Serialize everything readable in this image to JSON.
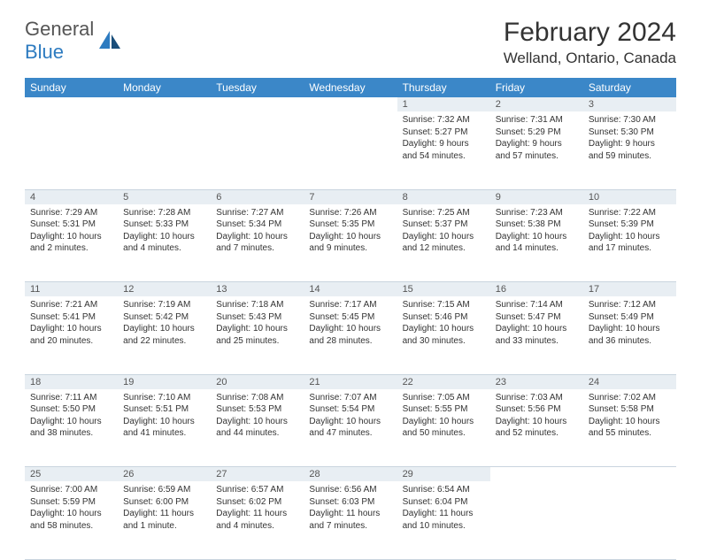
{
  "logo": {
    "general": "General",
    "blue": "Blue"
  },
  "title": "February 2024",
  "location": "Welland, Ontario, Canada",
  "header_color": "#3b87c8",
  "daynum_bg": "#e8eef3",
  "days_of_week": [
    "Sunday",
    "Monday",
    "Tuesday",
    "Wednesday",
    "Thursday",
    "Friday",
    "Saturday"
  ],
  "weeks": [
    [
      null,
      null,
      null,
      null,
      {
        "n": "1",
        "sr": "Sunrise: 7:32 AM",
        "ss": "Sunset: 5:27 PM",
        "dl": "Daylight: 9 hours and 54 minutes."
      },
      {
        "n": "2",
        "sr": "Sunrise: 7:31 AM",
        "ss": "Sunset: 5:29 PM",
        "dl": "Daylight: 9 hours and 57 minutes."
      },
      {
        "n": "3",
        "sr": "Sunrise: 7:30 AM",
        "ss": "Sunset: 5:30 PM",
        "dl": "Daylight: 9 hours and 59 minutes."
      }
    ],
    [
      {
        "n": "4",
        "sr": "Sunrise: 7:29 AM",
        "ss": "Sunset: 5:31 PM",
        "dl": "Daylight: 10 hours and 2 minutes."
      },
      {
        "n": "5",
        "sr": "Sunrise: 7:28 AM",
        "ss": "Sunset: 5:33 PM",
        "dl": "Daylight: 10 hours and 4 minutes."
      },
      {
        "n": "6",
        "sr": "Sunrise: 7:27 AM",
        "ss": "Sunset: 5:34 PM",
        "dl": "Daylight: 10 hours and 7 minutes."
      },
      {
        "n": "7",
        "sr": "Sunrise: 7:26 AM",
        "ss": "Sunset: 5:35 PM",
        "dl": "Daylight: 10 hours and 9 minutes."
      },
      {
        "n": "8",
        "sr": "Sunrise: 7:25 AM",
        "ss": "Sunset: 5:37 PM",
        "dl": "Daylight: 10 hours and 12 minutes."
      },
      {
        "n": "9",
        "sr": "Sunrise: 7:23 AM",
        "ss": "Sunset: 5:38 PM",
        "dl": "Daylight: 10 hours and 14 minutes."
      },
      {
        "n": "10",
        "sr": "Sunrise: 7:22 AM",
        "ss": "Sunset: 5:39 PM",
        "dl": "Daylight: 10 hours and 17 minutes."
      }
    ],
    [
      {
        "n": "11",
        "sr": "Sunrise: 7:21 AM",
        "ss": "Sunset: 5:41 PM",
        "dl": "Daylight: 10 hours and 20 minutes."
      },
      {
        "n": "12",
        "sr": "Sunrise: 7:19 AM",
        "ss": "Sunset: 5:42 PM",
        "dl": "Daylight: 10 hours and 22 minutes."
      },
      {
        "n": "13",
        "sr": "Sunrise: 7:18 AM",
        "ss": "Sunset: 5:43 PM",
        "dl": "Daylight: 10 hours and 25 minutes."
      },
      {
        "n": "14",
        "sr": "Sunrise: 7:17 AM",
        "ss": "Sunset: 5:45 PM",
        "dl": "Daylight: 10 hours and 28 minutes."
      },
      {
        "n": "15",
        "sr": "Sunrise: 7:15 AM",
        "ss": "Sunset: 5:46 PM",
        "dl": "Daylight: 10 hours and 30 minutes."
      },
      {
        "n": "16",
        "sr": "Sunrise: 7:14 AM",
        "ss": "Sunset: 5:47 PM",
        "dl": "Daylight: 10 hours and 33 minutes."
      },
      {
        "n": "17",
        "sr": "Sunrise: 7:12 AM",
        "ss": "Sunset: 5:49 PM",
        "dl": "Daylight: 10 hours and 36 minutes."
      }
    ],
    [
      {
        "n": "18",
        "sr": "Sunrise: 7:11 AM",
        "ss": "Sunset: 5:50 PM",
        "dl": "Daylight: 10 hours and 38 minutes."
      },
      {
        "n": "19",
        "sr": "Sunrise: 7:10 AM",
        "ss": "Sunset: 5:51 PM",
        "dl": "Daylight: 10 hours and 41 minutes."
      },
      {
        "n": "20",
        "sr": "Sunrise: 7:08 AM",
        "ss": "Sunset: 5:53 PM",
        "dl": "Daylight: 10 hours and 44 minutes."
      },
      {
        "n": "21",
        "sr": "Sunrise: 7:07 AM",
        "ss": "Sunset: 5:54 PM",
        "dl": "Daylight: 10 hours and 47 minutes."
      },
      {
        "n": "22",
        "sr": "Sunrise: 7:05 AM",
        "ss": "Sunset: 5:55 PM",
        "dl": "Daylight: 10 hours and 50 minutes."
      },
      {
        "n": "23",
        "sr": "Sunrise: 7:03 AM",
        "ss": "Sunset: 5:56 PM",
        "dl": "Daylight: 10 hours and 52 minutes."
      },
      {
        "n": "24",
        "sr": "Sunrise: 7:02 AM",
        "ss": "Sunset: 5:58 PM",
        "dl": "Daylight: 10 hours and 55 minutes."
      }
    ],
    [
      {
        "n": "25",
        "sr": "Sunrise: 7:00 AM",
        "ss": "Sunset: 5:59 PM",
        "dl": "Daylight: 10 hours and 58 minutes."
      },
      {
        "n": "26",
        "sr": "Sunrise: 6:59 AM",
        "ss": "Sunset: 6:00 PM",
        "dl": "Daylight: 11 hours and 1 minute."
      },
      {
        "n": "27",
        "sr": "Sunrise: 6:57 AM",
        "ss": "Sunset: 6:02 PM",
        "dl": "Daylight: 11 hours and 4 minutes."
      },
      {
        "n": "28",
        "sr": "Sunrise: 6:56 AM",
        "ss": "Sunset: 6:03 PM",
        "dl": "Daylight: 11 hours and 7 minutes."
      },
      {
        "n": "29",
        "sr": "Sunrise: 6:54 AM",
        "ss": "Sunset: 6:04 PM",
        "dl": "Daylight: 11 hours and 10 minutes."
      },
      null,
      null
    ]
  ]
}
